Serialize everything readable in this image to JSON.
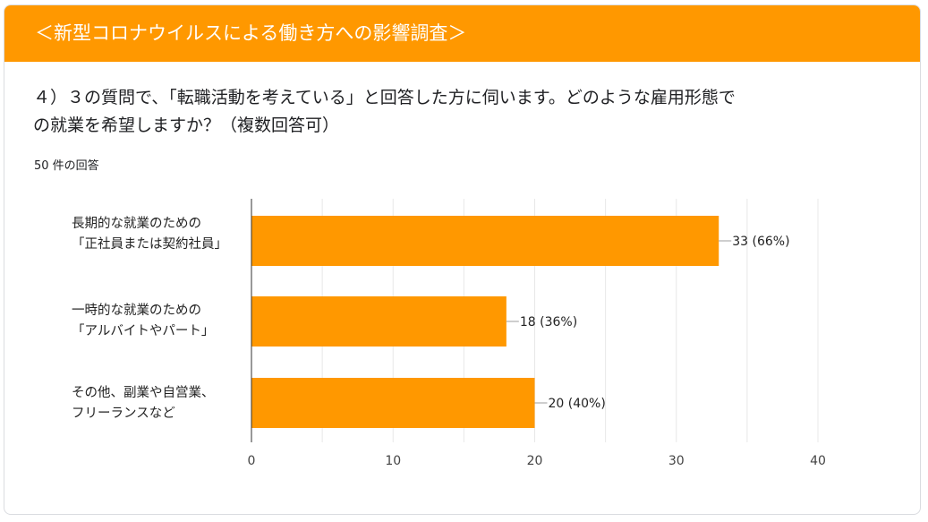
{
  "survey": {
    "title": "＜新型コロナウイルスによる働き方への影響調査＞",
    "question_line1": "４）３の質問で、「転職活動を考えている」と回答した方に伺います。どのような雇用形態で",
    "question_line2": "の就業を希望しますか？（複数回答可）",
    "response_count": "50 件の回答"
  },
  "colors": {
    "accent": "#ff9800",
    "bar": "#ff9800",
    "grid": "#e8e8e8",
    "axis": "#333333"
  },
  "chart_data": {
    "type": "bar",
    "orientation": "horizontal",
    "categories": [
      [
        "長期的な就業のための",
        "「正社員または契約社員」"
      ],
      [
        "一時的な就業のための",
        "「アルバイトやパート」"
      ],
      [
        "その他、副業や自営業、",
        "フリーランスなど"
      ]
    ],
    "values": [
      33,
      18,
      20
    ],
    "data_labels": [
      "33 (66%)",
      "18 (36%)",
      "20 (40%)"
    ],
    "xlim": [
      0,
      40
    ],
    "x_ticks": [
      0,
      10,
      20,
      30,
      40
    ],
    "grid": true
  }
}
